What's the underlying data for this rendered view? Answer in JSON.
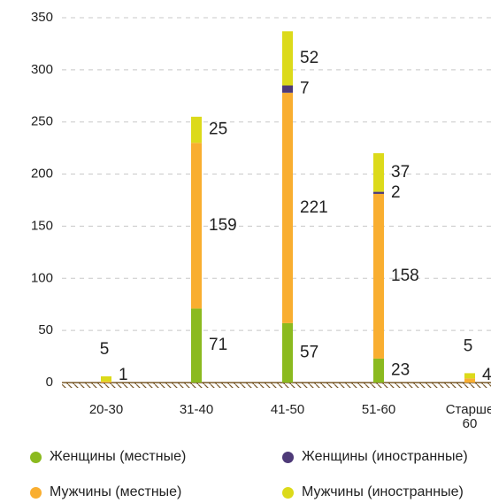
{
  "chart_data": {
    "type": "stacked_bar",
    "categories": [
      "20-30",
      "31-40",
      "41-50",
      "51-60",
      "Старше 60"
    ],
    "series": [
      {
        "name": "Женщины (местные)",
        "color": "#8bba1f",
        "values": [
          null,
          71,
          57,
          23,
          null
        ]
      },
      {
        "name": "Мужчины (местные)",
        "color": "#f9ae30",
        "values": [
          1,
          159,
          221,
          158,
          4
        ]
      },
      {
        "name": "Женщины (иностранные)",
        "color": "#4e3a78",
        "values": [
          null,
          null,
          7,
          2,
          null
        ]
      },
      {
        "name": "Мужчины (иностранные)",
        "color": "#dcda1a",
        "values": [
          5,
          25,
          52,
          37,
          5
        ]
      }
    ],
    "ylim": [
      0,
      350
    ],
    "yticks": [
      0,
      50,
      100,
      150,
      200,
      250,
      300,
      350
    ],
    "grid": true
  }
}
